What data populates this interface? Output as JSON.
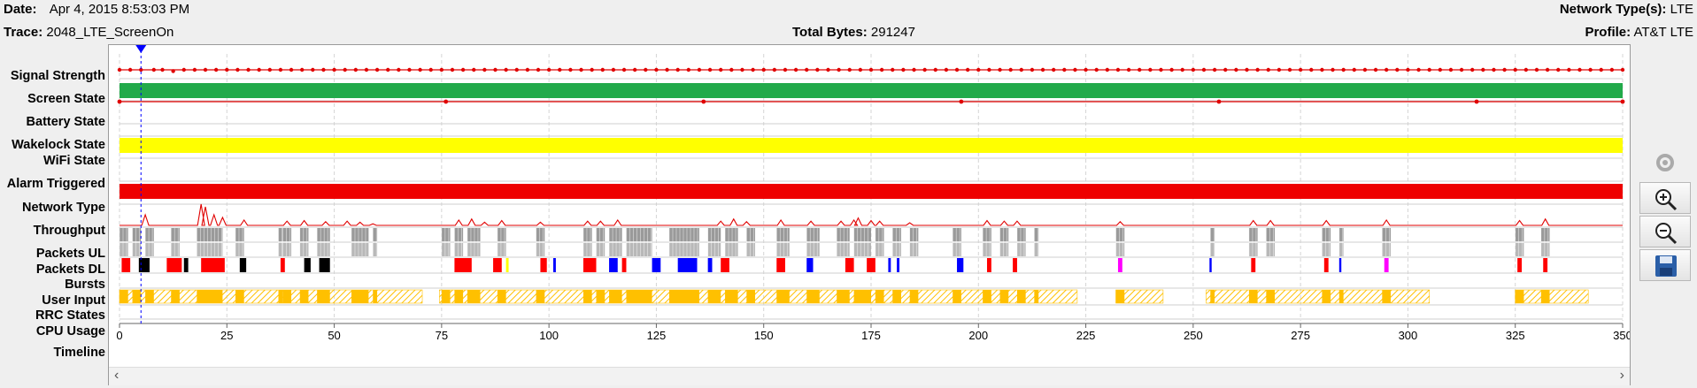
{
  "header": {
    "date_label": "Date:",
    "date_value": "Apr 4, 2015 8:53:03 PM",
    "trace_label": "Trace:",
    "trace_value": "2048_LTE_ScreenOn",
    "total_bytes_label": "Total Bytes:",
    "total_bytes_value": "291247",
    "network_types_label": "Network Type(s):",
    "network_types_value": "LTE",
    "profile_label": "Profile:",
    "profile_value": "AT&T LTE"
  },
  "rows": [
    {
      "key": "signal",
      "label": "Signal Strength"
    },
    {
      "key": "screen",
      "label": "Screen State"
    },
    {
      "key": "battery",
      "label": "Battery State"
    },
    {
      "key": "wakelock",
      "label": "Wakelock State"
    },
    {
      "key": "wifi",
      "label": "WiFi State"
    },
    {
      "key": "alarm",
      "label": "Alarm Triggered"
    },
    {
      "key": "network",
      "label": "Network Type"
    },
    {
      "key": "throughput",
      "label": "Throughput"
    },
    {
      "key": "packets_ul",
      "label": "Packets UL"
    },
    {
      "key": "packets_dl",
      "label": "Packets DL"
    },
    {
      "key": "bursts",
      "label": "Bursts"
    },
    {
      "key": "user_input",
      "label": "User Input"
    },
    {
      "key": "rrc",
      "label": "RRC States"
    },
    {
      "key": "cpu",
      "label": "CPU Usage"
    },
    {
      "key": "timeline",
      "label": "Timeline"
    }
  ],
  "timeline": {
    "min": 0,
    "max": 350,
    "step": 25,
    "ticks": [
      "0",
      "25",
      "50",
      "75",
      "100",
      "125",
      "150",
      "175",
      "200",
      "225",
      "250",
      "275",
      "300",
      "325",
      "350"
    ],
    "cursor": 5
  },
  "colors": {
    "signal": "#e00000",
    "screen": "#22aa4a",
    "wifi": "#ffff00",
    "network": "#ee0000",
    "packets": "#888888",
    "rrc": "#ffc000",
    "burst_red": "#ff0000",
    "burst_black": "#000000",
    "burst_blue": "#0000ff",
    "burst_magenta": "#ff00ff",
    "burst_yellow": "#ffff00",
    "cursor": "#0000ff"
  },
  "icons": [
    "refresh-icon",
    "zoom-in-icon",
    "zoom-out-icon",
    "save-icon",
    "scroll-left-icon",
    "scroll-right-icon"
  ],
  "chart_data": {
    "type": "timeline",
    "x_range": [
      0,
      350
    ],
    "signal_points": [
      0,
      2.5,
      5,
      8,
      10,
      12.5,
      15,
      17.5,
      20,
      22.5,
      25,
      27.5,
      30,
      32.5,
      35,
      37.5,
      40,
      42.5,
      45,
      47.5,
      50,
      52.5,
      55,
      57.5,
      60,
      62.5,
      65,
      67.5,
      70,
      72.5,
      75,
      77.5,
      80,
      82.5,
      85,
      87.5,
      90,
      92.5,
      95,
      97.5,
      100,
      102.5,
      105,
      107.5,
      110,
      112.5,
      115,
      117.5,
      120,
      122.5,
      125,
      127.5,
      130,
      132.5,
      135,
      137.5,
      140,
      142.5,
      145,
      147.5,
      150,
      152.5,
      155,
      157.5,
      160,
      162.5,
      165,
      167.5,
      170,
      172.5,
      175,
      177.5,
      180,
      182.5,
      185,
      187.5,
      190,
      192.5,
      195,
      197.5,
      200,
      202.5,
      205,
      207.5,
      210,
      212.5,
      215,
      217.5,
      220,
      222.5,
      225,
      227.5,
      230,
      232.5,
      235,
      237.5,
      240,
      242.5,
      245,
      247.5,
      250,
      252.5,
      255,
      257.5,
      260,
      262.5,
      265,
      267.5,
      270,
      272.5,
      275,
      277.5,
      280,
      282.5,
      285,
      287.5,
      290,
      292.5,
      295,
      297.5,
      300,
      302.5,
      305,
      307.5,
      310,
      312.5,
      315,
      317.5,
      320,
      322.5,
      325,
      327.5,
      330,
      332.5,
      335,
      337.5,
      340,
      342.5,
      345,
      347.5,
      350
    ],
    "battery_points": [
      0,
      76,
      136,
      196,
      256,
      316,
      350
    ],
    "screen_on": [
      [
        0,
        350
      ]
    ],
    "wifi_on": [
      [
        0,
        350
      ]
    ],
    "network_lte": [
      [
        0,
        350
      ]
    ],
    "throughput_peaks": [
      [
        6,
        20
      ],
      [
        19,
        40
      ],
      [
        20,
        35
      ],
      [
        22,
        20
      ],
      [
        24,
        15
      ],
      [
        29,
        10
      ],
      [
        39,
        8
      ],
      [
        43,
        9
      ],
      [
        48,
        7
      ],
      [
        53,
        8
      ],
      [
        56,
        6
      ],
      [
        59,
        3
      ],
      [
        79,
        10
      ],
      [
        82,
        12
      ],
      [
        85,
        6
      ],
      [
        89,
        9
      ],
      [
        98,
        6
      ],
      [
        109,
        8
      ],
      [
        112,
        8
      ],
      [
        116,
        10
      ],
      [
        140,
        8
      ],
      [
        143,
        12
      ],
      [
        146,
        7
      ],
      [
        154,
        10
      ],
      [
        161,
        8
      ],
      [
        168,
        8
      ],
      [
        171,
        10
      ],
      [
        172,
        14
      ],
      [
        175,
        9
      ],
      [
        177,
        8
      ],
      [
        184,
        5
      ],
      [
        202,
        9
      ],
      [
        206,
        8
      ],
      [
        209,
        8
      ],
      [
        233,
        7
      ],
      [
        264,
        9
      ],
      [
        268,
        9
      ],
      [
        281,
        9
      ],
      [
        295,
        10
      ],
      [
        326,
        9
      ],
      [
        332,
        12
      ]
    ],
    "packet_groups": [
      [
        0,
        2
      ],
      [
        3,
        5
      ],
      [
        6,
        8
      ],
      [
        12,
        14
      ],
      [
        18,
        24
      ],
      [
        27,
        29
      ],
      [
        37,
        38
      ],
      [
        38,
        40
      ],
      [
        42,
        44
      ],
      [
        46,
        49
      ],
      [
        54,
        58
      ],
      [
        59,
        60
      ],
      [
        75,
        77
      ],
      [
        78,
        80
      ],
      [
        81,
        84
      ],
      [
        88,
        90
      ],
      [
        97,
        99
      ],
      [
        108,
        110
      ],
      [
        111,
        113
      ],
      [
        114,
        117
      ],
      [
        118,
        124
      ],
      [
        128,
        135
      ],
      [
        137,
        140
      ],
      [
        141,
        144
      ],
      [
        146,
        148
      ],
      [
        153,
        156
      ],
      [
        160,
        163
      ],
      [
        167,
        170
      ],
      [
        171,
        175
      ],
      [
        176,
        178
      ],
      [
        180,
        182
      ],
      [
        184,
        186
      ],
      [
        194,
        196
      ],
      [
        201,
        203
      ],
      [
        205,
        207
      ],
      [
        209,
        211
      ],
      [
        213,
        214
      ],
      [
        232,
        234
      ],
      [
        254,
        255
      ],
      [
        263,
        265
      ],
      [
        267,
        269
      ],
      [
        280,
        282
      ],
      [
        284,
        285
      ],
      [
        294,
        296
      ],
      [
        325,
        327
      ],
      [
        331,
        333
      ]
    ],
    "bursts": [
      {
        "x0": 0.5,
        "x1": 2.5,
        "c": "burst_red"
      },
      {
        "x0": 4.5,
        "x1": 7,
        "c": "burst_black"
      },
      {
        "x0": 11,
        "x1": 14.5,
        "c": "burst_red"
      },
      {
        "x0": 15,
        "x1": 16,
        "c": "burst_black"
      },
      {
        "x0": 19,
        "x1": 24.5,
        "c": "burst_red"
      },
      {
        "x0": 28,
        "x1": 29.5,
        "c": "burst_black"
      },
      {
        "x0": 37.5,
        "x1": 38.5,
        "c": "burst_red"
      },
      {
        "x0": 43,
        "x1": 44.5,
        "c": "burst_black"
      },
      {
        "x0": 46.5,
        "x1": 49,
        "c": "burst_black"
      },
      {
        "x0": 78,
        "x1": 82,
        "c": "burst_red"
      },
      {
        "x0": 87,
        "x1": 89,
        "c": "burst_red"
      },
      {
        "x0": 90,
        "x1": 90.6,
        "c": "burst_yellow"
      },
      {
        "x0": 98,
        "x1": 99.5,
        "c": "burst_red"
      },
      {
        "x0": 101,
        "x1": 101.6,
        "c": "burst_blue"
      },
      {
        "x0": 108,
        "x1": 111,
        "c": "burst_red"
      },
      {
        "x0": 114,
        "x1": 116,
        "c": "burst_blue"
      },
      {
        "x0": 117,
        "x1": 118,
        "c": "burst_red"
      },
      {
        "x0": 124,
        "x1": 126,
        "c": "burst_blue"
      },
      {
        "x0": 130,
        "x1": 134.5,
        "c": "burst_blue"
      },
      {
        "x0": 137,
        "x1": 138,
        "c": "burst_blue"
      },
      {
        "x0": 140,
        "x1": 142,
        "c": "burst_red"
      },
      {
        "x0": 153,
        "x1": 155,
        "c": "burst_red"
      },
      {
        "x0": 160,
        "x1": 161.5,
        "c": "burst_blue"
      },
      {
        "x0": 169,
        "x1": 171,
        "c": "burst_red"
      },
      {
        "x0": 174,
        "x1": 176,
        "c": "burst_red"
      },
      {
        "x0": 179,
        "x1": 179.6,
        "c": "burst_blue"
      },
      {
        "x0": 181,
        "x1": 181.6,
        "c": "burst_blue"
      },
      {
        "x0": 195,
        "x1": 196.5,
        "c": "burst_blue"
      },
      {
        "x0": 202,
        "x1": 203,
        "c": "burst_red"
      },
      {
        "x0": 208,
        "x1": 209,
        "c": "burst_red"
      },
      {
        "x0": 232.5,
        "x1": 233.5,
        "c": "burst_magenta"
      },
      {
        "x0": 253.8,
        "x1": 254.3,
        "c": "burst_blue"
      },
      {
        "x0": 263.5,
        "x1": 264.5,
        "c": "burst_red"
      },
      {
        "x0": 280.5,
        "x1": 281.5,
        "c": "burst_red"
      },
      {
        "x0": 284,
        "x1": 284.5,
        "c": "burst_blue"
      },
      {
        "x0": 294.5,
        "x1": 295.5,
        "c": "burst_magenta"
      },
      {
        "x0": 325.5,
        "x1": 326.5,
        "c": "burst_red"
      },
      {
        "x0": 331.5,
        "x1": 332.5,
        "c": "burst_red"
      }
    ],
    "rrc_segments": [
      [
        0,
        70.5
      ],
      [
        74.5,
        223
      ],
      [
        232,
        243
      ],
      [
        253,
        305
      ],
      [
        325,
        342
      ]
    ]
  }
}
